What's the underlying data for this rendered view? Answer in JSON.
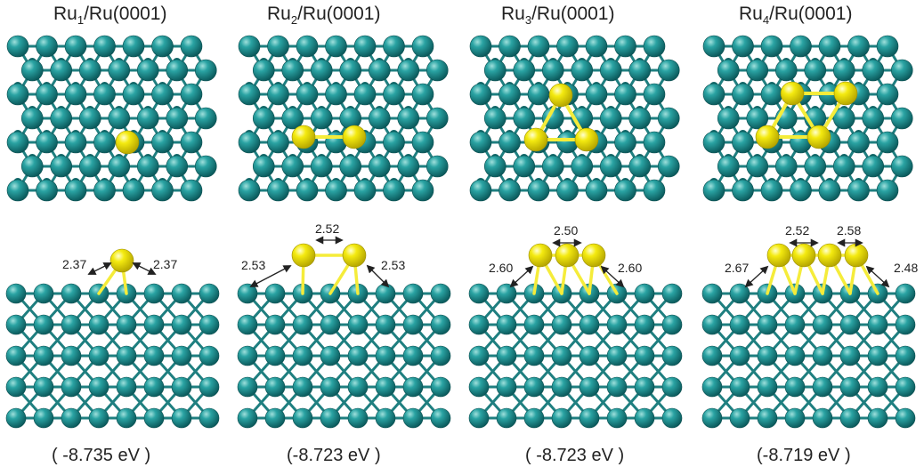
{
  "colors": {
    "substrate_atom": "#1a8a8a",
    "substrate_bond": "#1f7f80",
    "cluster_atom": "#f2e600",
    "cluster_bond": "#f5ec3a",
    "text": "#222222"
  },
  "panels": [
    {
      "title_main": "Ru",
      "title_sub": "1",
      "title_rest": "/Ru(0001)",
      "cluster_size": 1,
      "distances": {
        "left": "2.37",
        "right": "2.37",
        "top": []
      },
      "energy": "( -8.735 eV )"
    },
    {
      "title_main": "Ru",
      "title_sub": "2",
      "title_rest": "/Ru(0001)",
      "cluster_size": 2,
      "distances": {
        "left": "2.53",
        "right": "2.53",
        "top": [
          "2.52"
        ]
      },
      "energy": "(-8.723 eV )"
    },
    {
      "title_main": "Ru",
      "title_sub": "3",
      "title_rest": "/Ru(0001)",
      "cluster_size": 3,
      "distances": {
        "left": "2.60",
        "right": "2.60",
        "top": [
          "2.50"
        ]
      },
      "energy": "( -8.723 eV )"
    },
    {
      "title_main": "Ru",
      "title_sub": "4",
      "title_rest": "/Ru(0001)",
      "cluster_size": 4,
      "distances": {
        "left": "2.67",
        "right": "2.48",
        "top": [
          "2.52",
          "2.58"
        ]
      },
      "energy": "(-8.719 eV )"
    }
  ]
}
